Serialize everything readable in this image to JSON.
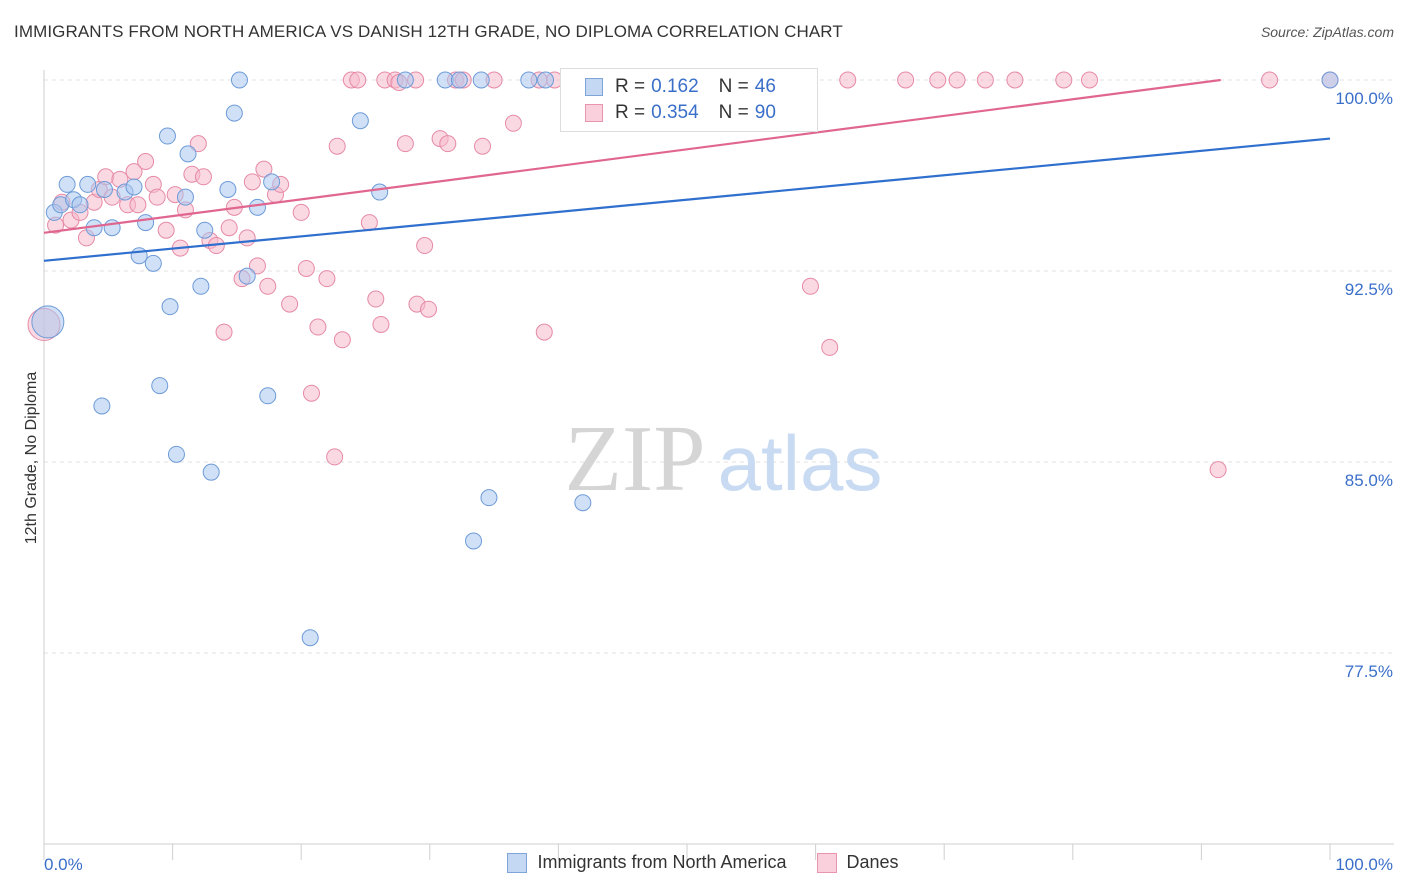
{
  "title": "IMMIGRANTS FROM NORTH AMERICA VS DANISH 12TH GRADE, NO DIPLOMA CORRELATION CHART",
  "source": "Source: ZipAtlas.com",
  "watermark": {
    "zip": "ZIP",
    "atlas": "atlas"
  },
  "legend": {
    "series1": {
      "r_label": "R =",
      "r_value": "0.162",
      "n_label": "N =",
      "n_value": "46"
    },
    "series2": {
      "r_label": "R =",
      "r_value": "0.354",
      "n_label": "N =",
      "n_value": "90"
    }
  },
  "bottom_legend": {
    "series1": "Immigrants from North America",
    "series2": "Danes"
  },
  "colors": {
    "blue_fill": "#a9c6ee",
    "blue_stroke": "#6d9bd8",
    "blue_line": "#2f6fce",
    "pink_fill": "#f6b9cc",
    "pink_stroke": "#e68aa6",
    "pink_line": "#e06690",
    "axis_text": "#3a6fc9"
  },
  "chart_data": {
    "type": "scatter",
    "title": "IMMIGRANTS FROM NORTH AMERICA VS DANISH 12TH GRADE, NO DIPLOMA CORRELATION CHART",
    "xlabel": "",
    "ylabel": "12th Grade, No Diploma",
    "xlim": [
      0,
      100
    ],
    "ylim": [
      70,
      100.8
    ],
    "x_tick_labels": [
      "0.0%",
      "100.0%"
    ],
    "y_ticks": [
      77.5,
      85.0,
      92.5,
      100.0
    ],
    "y_tick_labels": [
      "77.5%",
      "85.0%",
      "92.5%",
      "100.0%"
    ],
    "series": [
      {
        "name": "Immigrants from North America",
        "r": 0.162,
        "n": 46,
        "trend": {
          "x": [
            0,
            100
          ],
          "y": [
            92.9,
            97.7
          ]
        },
        "points": [
          {
            "x": 0.3,
            "y": 90.5,
            "big": true
          },
          {
            "x": 0.8,
            "y": 94.8
          },
          {
            "x": 1.3,
            "y": 95.1
          },
          {
            "x": 1.8,
            "y": 95.9
          },
          {
            "x": 2.3,
            "y": 95.3
          },
          {
            "x": 2.8,
            "y": 95.1
          },
          {
            "x": 3.4,
            "y": 95.9
          },
          {
            "x": 3.9,
            "y": 94.2
          },
          {
            "x": 4.7,
            "y": 95.7
          },
          {
            "x": 5.3,
            "y": 94.2
          },
          {
            "x": 6.3,
            "y": 95.6
          },
          {
            "x": 7.0,
            "y": 95.8
          },
          {
            "x": 7.4,
            "y": 93.1
          },
          {
            "x": 7.9,
            "y": 94.4
          },
          {
            "x": 8.5,
            "y": 92.8
          },
          {
            "x": 9.0,
            "y": 88.0
          },
          {
            "x": 9.6,
            "y": 97.8
          },
          {
            "x": 10.3,
            "y": 85.3
          },
          {
            "x": 11.0,
            "y": 95.4
          },
          {
            "x": 11.2,
            "y": 97.1
          },
          {
            "x": 12.2,
            "y": 91.9
          },
          {
            "x": 12.5,
            "y": 94.1
          },
          {
            "x": 13.0,
            "y": 84.6
          },
          {
            "x": 14.3,
            "y": 95.7
          },
          {
            "x": 14.8,
            "y": 98.7
          },
          {
            "x": 15.2,
            "y": 100.0
          },
          {
            "x": 15.8,
            "y": 92.3
          },
          {
            "x": 16.6,
            "y": 95.0
          },
          {
            "x": 17.4,
            "y": 87.6
          },
          {
            "x": 17.7,
            "y": 96.0
          },
          {
            "x": 4.5,
            "y": 87.2
          },
          {
            "x": 9.8,
            "y": 91.1
          },
          {
            "x": 20.7,
            "y": 78.1
          },
          {
            "x": 24.6,
            "y": 98.4
          },
          {
            "x": 26.1,
            "y": 95.6
          },
          {
            "x": 28.1,
            "y": 100.0
          },
          {
            "x": 31.2,
            "y": 100.0
          },
          {
            "x": 32.3,
            "y": 100.0
          },
          {
            "x": 33.4,
            "y": 81.9
          },
          {
            "x": 34.0,
            "y": 100.0
          },
          {
            "x": 34.6,
            "y": 83.6
          },
          {
            "x": 37.7,
            "y": 100.0
          },
          {
            "x": 39.0,
            "y": 100.0
          },
          {
            "x": 41.9,
            "y": 83.4
          },
          {
            "x": 47.1,
            "y": 100.0
          },
          {
            "x": 100.0,
            "y": 100.0
          }
        ]
      },
      {
        "name": "Danes",
        "r": 0.354,
        "n": 90,
        "trend": {
          "x": [
            0,
            91.5
          ],
          "y": [
            94.0,
            100.0
          ]
        },
        "points": [
          {
            "x": 0.0,
            "y": 90.4,
            "big": true
          },
          {
            "x": 0.9,
            "y": 94.3
          },
          {
            "x": 1.4,
            "y": 95.2
          },
          {
            "x": 2.1,
            "y": 94.5
          },
          {
            "x": 2.8,
            "y": 94.8
          },
          {
            "x": 3.3,
            "y": 93.8
          },
          {
            "x": 3.9,
            "y": 95.2
          },
          {
            "x": 4.3,
            "y": 95.7
          },
          {
            "x": 4.8,
            "y": 96.2
          },
          {
            "x": 5.3,
            "y": 95.4
          },
          {
            "x": 5.9,
            "y": 96.1
          },
          {
            "x": 6.5,
            "y": 95.1
          },
          {
            "x": 7.0,
            "y": 96.4
          },
          {
            "x": 7.3,
            "y": 95.1
          },
          {
            "x": 7.9,
            "y": 96.8
          },
          {
            "x": 8.5,
            "y": 95.9
          },
          {
            "x": 8.8,
            "y": 95.4
          },
          {
            "x": 9.5,
            "y": 94.1
          },
          {
            "x": 10.2,
            "y": 95.5
          },
          {
            "x": 10.6,
            "y": 93.4
          },
          {
            "x": 11.0,
            "y": 94.9
          },
          {
            "x": 11.5,
            "y": 96.3
          },
          {
            "x": 12.0,
            "y": 97.5
          },
          {
            "x": 12.4,
            "y": 96.2
          },
          {
            "x": 12.9,
            "y": 93.7
          },
          {
            "x": 13.4,
            "y": 93.5
          },
          {
            "x": 14.0,
            "y": 90.1
          },
          {
            "x": 14.4,
            "y": 94.2
          },
          {
            "x": 14.8,
            "y": 95.0
          },
          {
            "x": 15.4,
            "y": 92.2
          },
          {
            "x": 15.8,
            "y": 93.8
          },
          {
            "x": 16.2,
            "y": 96.0
          },
          {
            "x": 16.6,
            "y": 92.7
          },
          {
            "x": 17.1,
            "y": 96.5
          },
          {
            "x": 17.4,
            "y": 91.9
          },
          {
            "x": 18.0,
            "y": 95.5
          },
          {
            "x": 18.4,
            "y": 95.9
          },
          {
            "x": 19.1,
            "y": 91.2
          },
          {
            "x": 20.0,
            "y": 94.8
          },
          {
            "x": 20.4,
            "y": 92.6
          },
          {
            "x": 20.8,
            "y": 87.7
          },
          {
            "x": 21.3,
            "y": 90.3
          },
          {
            "x": 22.0,
            "y": 92.2
          },
          {
            "x": 22.6,
            "y": 85.2
          },
          {
            "x": 22.8,
            "y": 97.4
          },
          {
            "x": 23.2,
            "y": 89.8
          },
          {
            "x": 23.9,
            "y": 100.0
          },
          {
            "x": 24.4,
            "y": 100.0
          },
          {
            "x": 25.3,
            "y": 94.4
          },
          {
            "x": 25.8,
            "y": 91.4
          },
          {
            "x": 26.5,
            "y": 100.0
          },
          {
            "x": 26.2,
            "y": 90.4
          },
          {
            "x": 27.3,
            "y": 100.0
          },
          {
            "x": 27.6,
            "y": 99.9
          },
          {
            "x": 28.1,
            "y": 97.5
          },
          {
            "x": 28.9,
            "y": 100.0
          },
          {
            "x": 29.0,
            "y": 91.2
          },
          {
            "x": 29.6,
            "y": 93.5
          },
          {
            "x": 29.9,
            "y": 91.0
          },
          {
            "x": 30.8,
            "y": 97.7
          },
          {
            "x": 31.4,
            "y": 97.5
          },
          {
            "x": 32.0,
            "y": 100.0
          },
          {
            "x": 32.6,
            "y": 100.0
          },
          {
            "x": 34.1,
            "y": 97.4
          },
          {
            "x": 35.0,
            "y": 100.0
          },
          {
            "x": 36.5,
            "y": 98.3
          },
          {
            "x": 38.5,
            "y": 100.0
          },
          {
            "x": 38.9,
            "y": 90.1
          },
          {
            "x": 39.7,
            "y": 100.0
          },
          {
            "x": 41.3,
            "y": 98.5
          },
          {
            "x": 42.4,
            "y": 100.0
          },
          {
            "x": 44.1,
            "y": 100.0
          },
          {
            "x": 48.1,
            "y": 100.0
          },
          {
            "x": 49.4,
            "y": 100.0
          },
          {
            "x": 50.5,
            "y": 100.0
          },
          {
            "x": 52.7,
            "y": 100.0
          },
          {
            "x": 55.3,
            "y": 98.6
          },
          {
            "x": 59.6,
            "y": 91.9
          },
          {
            "x": 61.1,
            "y": 89.5
          },
          {
            "x": 62.5,
            "y": 100.0
          },
          {
            "x": 67.0,
            "y": 100.0
          },
          {
            "x": 69.5,
            "y": 100.0
          },
          {
            "x": 71.0,
            "y": 100.0
          },
          {
            "x": 73.2,
            "y": 100.0
          },
          {
            "x": 75.5,
            "y": 100.0
          },
          {
            "x": 79.3,
            "y": 100.0
          },
          {
            "x": 81.3,
            "y": 100.0
          },
          {
            "x": 91.3,
            "y": 84.7
          },
          {
            "x": 95.3,
            "y": 100.0
          },
          {
            "x": 100.0,
            "y": 100.0
          }
        ]
      }
    ]
  }
}
